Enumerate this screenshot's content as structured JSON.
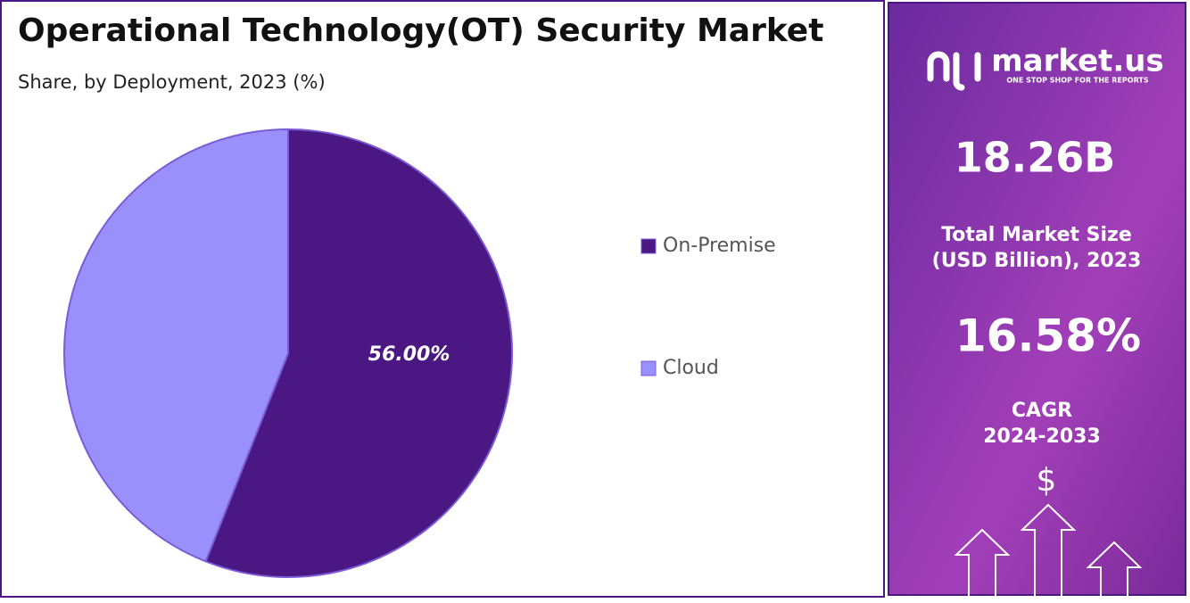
{
  "chart_data": {
    "type": "pie",
    "title": "Operational Technology(OT) Security Market",
    "subtitle": "Share, by Deployment, 2023 (%)",
    "categories": [
      "On-Premise",
      "Cloud"
    ],
    "values": [
      56,
      44
    ],
    "value_labels": [
      "56.00%",
      null
    ],
    "colors": [
      "#4b1782",
      "#9a90fc"
    ],
    "legend": "right"
  },
  "panel": {
    "brand": "market.us",
    "tagline": "ONE STOP SHOP FOR THE REPORTS",
    "market_size": "18.26B",
    "market_size_label": [
      "Total Market Size",
      "(USD Billion), 2023"
    ],
    "cagr": "16.58%",
    "cagr_label": [
      "CAGR",
      "2024-2033"
    ],
    "currency": "$"
  }
}
